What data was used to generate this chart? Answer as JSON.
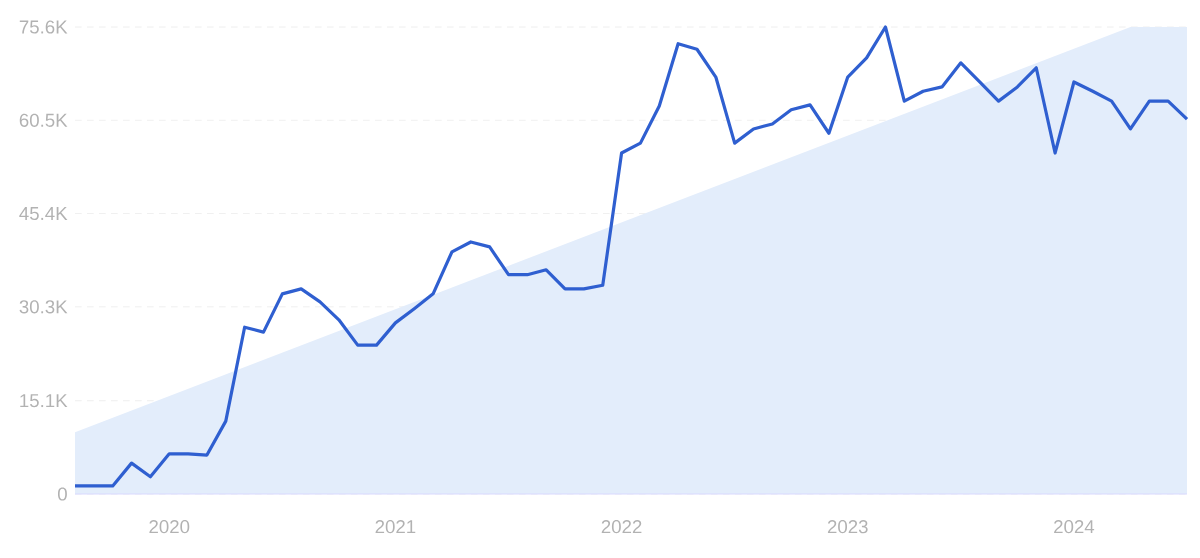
{
  "chart_data": {
    "type": "line",
    "x": [
      "2019-08",
      "2019-09",
      "2019-10",
      "2019-11",
      "2019-12",
      "2020-01",
      "2020-02",
      "2020-03",
      "2020-04",
      "2020-05",
      "2020-06",
      "2020-07",
      "2020-08",
      "2020-09",
      "2020-10",
      "2020-11",
      "2020-12",
      "2021-01",
      "2021-02",
      "2021-03",
      "2021-04",
      "2021-05",
      "2021-06",
      "2021-07",
      "2021-08",
      "2021-09",
      "2021-10",
      "2021-11",
      "2021-12",
      "2022-01",
      "2022-02",
      "2022-03",
      "2022-04",
      "2022-05",
      "2022-06",
      "2022-07",
      "2022-08",
      "2022-09",
      "2022-10",
      "2022-11",
      "2022-12",
      "2023-01",
      "2023-02",
      "2023-03",
      "2023-04",
      "2023-05",
      "2023-06",
      "2023-07",
      "2023-08",
      "2023-09",
      "2023-10",
      "2023-11",
      "2023-12",
      "2024-01",
      "2024-02",
      "2024-03",
      "2024-04",
      "2024-05",
      "2024-06",
      "2024-07"
    ],
    "series": [
      {
        "type": "area",
        "color": "#e3edfb",
        "x": [
          "2019-08",
          "2024-04",
          "2024-07"
        ],
        "values": [
          10000,
          75600,
          75600
        ]
      },
      {
        "color": "#2f5fd0",
        "values": [
          1300,
          1300,
          1300,
          5000,
          2800,
          6500,
          6500,
          6300,
          11800,
          27000,
          26200,
          32400,
          33200,
          31100,
          28200,
          24100,
          24100,
          27700,
          30000,
          32400,
          39200,
          40800,
          40000,
          35500,
          35500,
          36300,
          33200,
          33200,
          33800,
          55200,
          56800,
          62800,
          72900,
          72000,
          67500,
          56800,
          59100,
          59900,
          62200,
          63000,
          58400,
          67500,
          70600,
          75600,
          63600,
          65200,
          65900,
          69800,
          66700,
          63600,
          65900,
          69000,
          55200,
          66700,
          65200,
          63600,
          59100,
          63600,
          63600,
          60700
        ]
      }
    ],
    "xlim": [
      "2019-08",
      "2024-07"
    ],
    "xticks": [
      {
        "value": "2020-01",
        "label": "2020"
      },
      {
        "value": "2021-01",
        "label": "2021"
      },
      {
        "value": "2022-01",
        "label": "2022"
      },
      {
        "value": "2023-01",
        "label": "2023"
      },
      {
        "value": "2024-01",
        "label": "2024"
      }
    ],
    "ylim": [
      0,
      75600
    ],
    "yticks": [
      {
        "value": 0,
        "label": "0"
      },
      {
        "value": 15100,
        "label": "15.1K"
      },
      {
        "value": 30300,
        "label": "30.3K"
      },
      {
        "value": 45400,
        "label": "45.4K"
      },
      {
        "value": 60500,
        "label": "60.5K"
      },
      {
        "value": 75600,
        "label": "75.6K"
      }
    ],
    "grid": "y",
    "line_style": "solid",
    "marker": "none"
  }
}
